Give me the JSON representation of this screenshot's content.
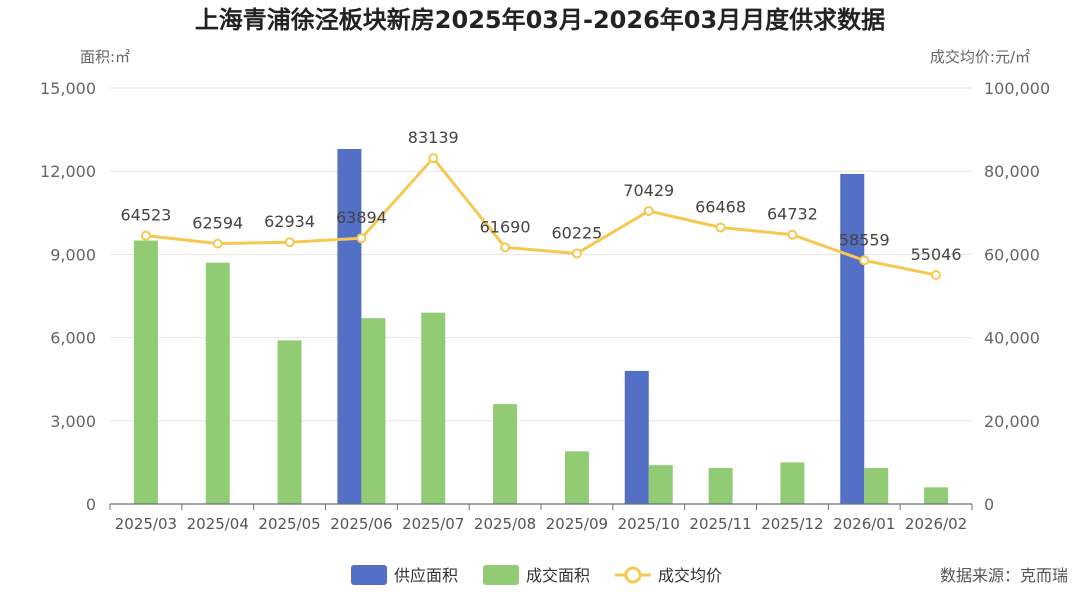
{
  "title": "上海青浦徐泾板块新房2025年03月-2026年03月月度供求数据",
  "source_label": "数据来源：克而瑞",
  "colors": {
    "supply": "#5470c6",
    "deal_area": "#91cc75",
    "price": "#f5c951",
    "grid": "#e6e6e6",
    "axis": "#6e7079"
  },
  "chart_data": {
    "type": "bar",
    "categories": [
      "2025/03",
      "2025/04",
      "2025/05",
      "2025/06",
      "2025/07",
      "2025/08",
      "2025/09",
      "2025/10",
      "2025/11",
      "2025/12",
      "2026/01",
      "2026/02"
    ],
    "y_left": {
      "name": "面积:㎡",
      "range": [
        0,
        15000
      ],
      "ticks": [
        0,
        3000,
        6000,
        9000,
        12000,
        15000
      ],
      "tick_labels": [
        "0",
        "3,000",
        "6,000",
        "9,000",
        "12,000",
        "15,000"
      ]
    },
    "y_right": {
      "name": "成交均价:元/㎡",
      "range": [
        0,
        100000
      ],
      "ticks": [
        0,
        20000,
        40000,
        60000,
        80000,
        100000
      ],
      "tick_labels": [
        "0",
        "20,000",
        "40,000",
        "60,000",
        "80,000",
        "100,000"
      ]
    },
    "grid": true,
    "legend_position": "bottom-center",
    "series": [
      {
        "name": "供应面积",
        "type": "bar",
        "axis": "left",
        "values": [
          0,
          0,
          0,
          12800,
          0,
          0,
          0,
          4800,
          0,
          0,
          11900,
          0
        ]
      },
      {
        "name": "成交面积",
        "type": "bar",
        "axis": "left",
        "values": [
          9500,
          8700,
          5900,
          6700,
          6900,
          3600,
          1900,
          1400,
          1300,
          1500,
          1300,
          600
        ]
      },
      {
        "name": "成交均价",
        "type": "line",
        "axis": "right",
        "values": [
          64523,
          62594,
          62934,
          63894,
          83139,
          61690,
          60225,
          70429,
          66468,
          64732,
          58559,
          55046
        ],
        "value_labels": [
          "64523",
          "62594",
          "62934",
          "63894",
          "83139",
          "61690",
          "60225",
          "70429",
          "66468",
          "64732",
          "58559",
          "55046"
        ]
      }
    ]
  }
}
